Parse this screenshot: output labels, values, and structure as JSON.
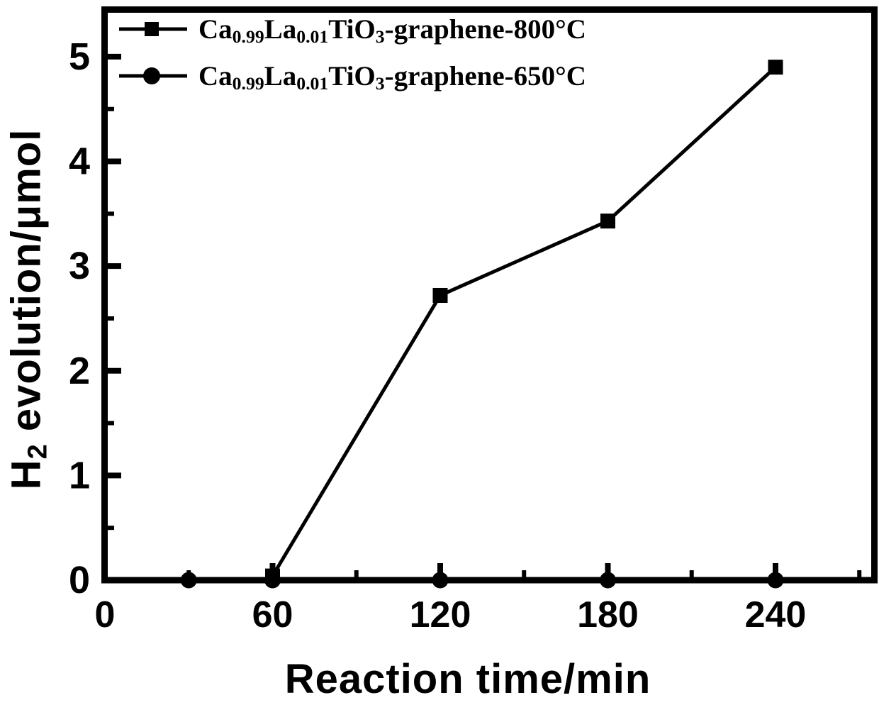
{
  "figure": {
    "background": "#ffffff",
    "foreground": "#000000"
  },
  "chart_data": {
    "type": "line",
    "title": "",
    "xlabel": "Reaction time/min",
    "ylabel": "H2 evolution/μmol",
    "ylabel_parts": [
      {
        "t": "H"
      },
      {
        "t": "2",
        "sub": true
      },
      {
        "t": " evolution/μmol"
      }
    ],
    "grid": false,
    "legend_position": "top-left",
    "x_axis": {
      "label": "Reaction time/min",
      "range": [
        0,
        274
      ],
      "major_ticks": [
        0,
        60,
        120,
        180,
        240
      ],
      "minor_ticks": [
        30,
        90,
        150,
        210,
        270
      ],
      "tick_direction": "in"
    },
    "y_axis": {
      "label": "H2 evolution/μmol",
      "range": [
        0,
        5.45
      ],
      "major_ticks": [
        0,
        1,
        2,
        3,
        4,
        5
      ],
      "minor_ticks": [
        0.5,
        1.5,
        2.5,
        3.5,
        4.5
      ],
      "tick_direction": "in"
    },
    "series": [
      {
        "name": "Ca0.99La0.01TiO3-graphene-800°C",
        "label_parts": [
          {
            "t": "Ca"
          },
          {
            "t": "0.99",
            "sub": true
          },
          {
            "t": "La"
          },
          {
            "t": "0.01",
            "sub": true
          },
          {
            "t": "TiO"
          },
          {
            "t": "3",
            "sub": true
          },
          {
            "t": "-graphene-800°C"
          }
        ],
        "marker": "square",
        "color": "#000000",
        "points": [
          [
            60,
            0.04
          ],
          [
            120,
            2.72
          ],
          [
            180,
            3.43
          ],
          [
            240,
            4.9
          ]
        ]
      },
      {
        "name": "Ca0.99La0.01TiO3-graphene-650°C",
        "label_parts": [
          {
            "t": "Ca"
          },
          {
            "t": "0.99",
            "sub": true
          },
          {
            "t": "La"
          },
          {
            "t": "0.01",
            "sub": true
          },
          {
            "t": "TiO"
          },
          {
            "t": "3",
            "sub": true
          },
          {
            "t": "-graphene-650°C"
          }
        ],
        "marker": "circle",
        "color": "#000000",
        "points": [
          [
            30,
            0
          ],
          [
            60,
            0
          ],
          [
            120,
            0
          ],
          [
            180,
            0
          ],
          [
            240,
            0
          ]
        ]
      }
    ]
  }
}
